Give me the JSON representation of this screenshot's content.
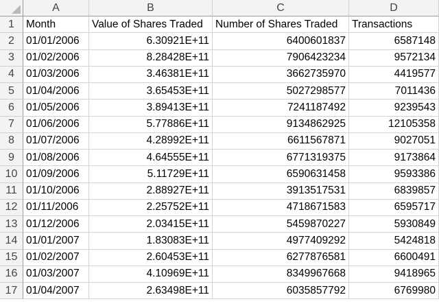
{
  "columns": [
    "A",
    "B",
    "C",
    "D"
  ],
  "rows": [
    {
      "num": "1",
      "cells": [
        "Month",
        "Value of Shares Traded",
        "Number of Shares Traded",
        "Transactions"
      ]
    },
    {
      "num": "2",
      "cells": [
        "01/01/2006",
        "6.30921E+11",
        "6400601837",
        "6587148"
      ]
    },
    {
      "num": "3",
      "cells": [
        "01/02/2006",
        "8.28428E+11",
        "7906423234",
        "9572134"
      ]
    },
    {
      "num": "4",
      "cells": [
        "01/03/2006",
        "3.46381E+11",
        "3662735970",
        "4419577"
      ]
    },
    {
      "num": "5",
      "cells": [
        "01/04/2006",
        "3.65453E+11",
        "5027298577",
        "7011436"
      ]
    },
    {
      "num": "6",
      "cells": [
        "01/05/2006",
        "3.89413E+11",
        "7241187492",
        "9239543"
      ]
    },
    {
      "num": "7",
      "cells": [
        "01/06/2006",
        "5.77886E+11",
        "9134862925",
        "12105358"
      ]
    },
    {
      "num": "8",
      "cells": [
        "01/07/2006",
        "4.28992E+11",
        "6611567871",
        "9027051"
      ]
    },
    {
      "num": "9",
      "cells": [
        "01/08/2006",
        "4.64555E+11",
        "6771319375",
        "9173864"
      ]
    },
    {
      "num": "10",
      "cells": [
        "01/09/2006",
        "5.11729E+11",
        "6590631458",
        "9593386"
      ]
    },
    {
      "num": "11",
      "cells": [
        "01/10/2006",
        "2.88927E+11",
        "3913517531",
        "6839857"
      ]
    },
    {
      "num": "12",
      "cells": [
        "01/11/2006",
        "2.25752E+11",
        "4718671583",
        "6595717"
      ]
    },
    {
      "num": "13",
      "cells": [
        "01/12/2006",
        "2.03415E+11",
        "5459870227",
        "5930849"
      ]
    },
    {
      "num": "14",
      "cells": [
        "01/01/2007",
        "1.83083E+11",
        "4977409292",
        "5424818"
      ]
    },
    {
      "num": "15",
      "cells": [
        "01/02/2007",
        "2.60453E+11",
        "6277876581",
        "6600491"
      ]
    },
    {
      "num": "16",
      "cells": [
        "01/03/2007",
        "4.10969E+11",
        "8349967668",
        "9418965"
      ]
    },
    {
      "num": "17",
      "cells": [
        "01/04/2007",
        "2.63498E+11",
        "6035857792",
        "6769980"
      ]
    }
  ]
}
